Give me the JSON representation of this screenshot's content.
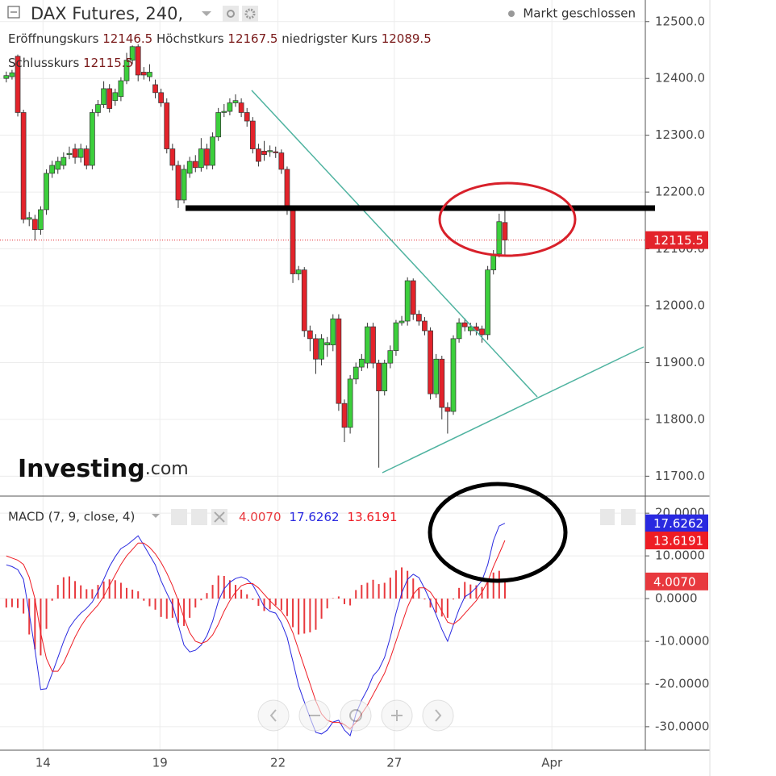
{
  "chart_data": [
    {
      "type": "candlestick",
      "title": "DAX Futures, 240,",
      "status": "Markt geschlossen",
      "ohlc_labels": [
        "Eröffnungskurs",
        "Höchstkurs",
        "niedrigster Kurs",
        "Schlusskurs"
      ],
      "logo": [
        "Investing",
        ".com"
      ],
      "up_color": "#3ccf3c",
      "down_color": "#e3232b",
      "open": [
        12400,
        12403,
        12439,
        12340,
        12152,
        12152,
        12134,
        12169,
        12233,
        12240,
        12247,
        12266,
        12276,
        12261,
        12276,
        12247,
        12340,
        12354,
        12382,
        12361,
        12368,
        12396,
        12432,
        12456,
        12411,
        12403,
        12389,
        12375,
        12357,
        12276,
        12247,
        12186,
        12233,
        12254,
        12243,
        12276,
        12247,
        12297,
        12340,
        12342,
        12357,
        12357,
        12340,
        12325,
        12276,
        12272,
        12271,
        12271,
        12269,
        12240,
        12169,
        12056,
        12063,
        11956,
        11942,
        11906,
        11931,
        11931,
        11977,
        11828,
        11786,
        11871,
        11892,
        11899,
        11963,
        11899,
        11850,
        11899,
        11921,
        11970,
        11973,
        12044,
        11985,
        11973,
        11956,
        11845,
        11906,
        11821,
        11814,
        11942,
        11970,
        11956,
        11963,
        11959,
        11949,
        12063,
        12091,
        12146.5
      ],
      "high": [
        12412,
        12415,
        12442,
        12345,
        12165,
        12160,
        12175,
        12240,
        12255,
        12262,
        12270,
        12280,
        12285,
        12285,
        12282,
        12346,
        12362,
        12395,
        12390,
        12382,
        12402,
        12445,
        12458,
        12460,
        12420,
        12425,
        12398,
        12382,
        12365,
        12285,
        12255,
        12248,
        12262,
        12265,
        12295,
        12285,
        12305,
        12348,
        12355,
        12365,
        12372,
        12365,
        12348,
        12332,
        12285,
        12290,
        12282,
        12280,
        12275,
        12245,
        12175,
        12070,
        12068,
        11965,
        11950,
        11950,
        11945,
        11985,
        11985,
        11835,
        11878,
        11900,
        11915,
        11970,
        11970,
        11905,
        11905,
        11930,
        11975,
        11982,
        12050,
        12048,
        11992,
        11980,
        11962,
        11915,
        11912,
        11830,
        11948,
        11978,
        11978,
        11970,
        11970,
        11965,
        12070,
        12098,
        12162,
        12167.5
      ],
      "low": [
        12393,
        12398,
        12333,
        12145,
        12140,
        12115,
        12125,
        12160,
        12225,
        12232,
        12240,
        12258,
        12250,
        12252,
        12240,
        12240,
        12333,
        12348,
        12340,
        12352,
        12360,
        12390,
        12425,
        12395,
        12398,
        12395,
        12365,
        12350,
        12268,
        12238,
        12172,
        12180,
        12225,
        12235,
        12236,
        12240,
        12240,
        12290,
        12332,
        12335,
        12350,
        12332,
        12315,
        12268,
        12245,
        12255,
        12262,
        12260,
        12232,
        12160,
        12040,
        12045,
        11945,
        11920,
        11880,
        11895,
        11910,
        11920,
        11815,
        11760,
        11775,
        11862,
        11885,
        11890,
        11890,
        11715,
        11842,
        11890,
        11912,
        11965,
        11965,
        11975,
        11965,
        11948,
        11835,
        11838,
        11800,
        11775,
        11808,
        11935,
        11955,
        11948,
        11948,
        11935,
        11940,
        12055,
        12085,
        12089.5
      ],
      "close": [
        12405,
        12410,
        12340,
        12152,
        12155,
        12134,
        12169,
        12233,
        12247,
        12254,
        12261,
        12268,
        12261,
        12276,
        12247,
        12340,
        12354,
        12382,
        12347,
        12375,
        12396,
        12432,
        12456,
        12406,
        12406,
        12411,
        12375,
        12357,
        12276,
        12247,
        12186,
        12240,
        12254,
        12243,
        12276,
        12247,
        12297,
        12340,
        12342,
        12357,
        12361,
        12340,
        12325,
        12276,
        12254,
        12266,
        12273,
        12269,
        12240,
        12169,
        12056,
        12063,
        11956,
        11942,
        11906,
        11942,
        11935,
        11977,
        11828,
        11786,
        11871,
        11892,
        11906,
        11963,
        11899,
        11850,
        11899,
        11921,
        11970,
        11973,
        12044,
        11985,
        11973,
        11956,
        11845,
        11906,
        11821,
        11814,
        11942,
        11970,
        11963,
        11963,
        11956,
        11949,
        12063,
        12091,
        12148,
        12115.5
      ],
      "xlim": [
        -1.1,
        111.5
      ],
      "xticks": [
        {
          "value": 6.4,
          "label": "14"
        },
        {
          "value": 26.8,
          "label": "19"
        },
        {
          "value": 47.4,
          "label": "22"
        },
        {
          "value": 67.7,
          "label": "27"
        },
        {
          "value": 95.2,
          "label": "Apr"
        }
      ],
      "ylim": [
        11665,
        12538
      ],
      "yticks": [
        {
          "value": 11700,
          "label": "11700.0"
        },
        {
          "value": 11800,
          "label": "11800.0"
        },
        {
          "value": 11900,
          "label": "11900.0"
        },
        {
          "value": 12000,
          "label": "12000.0"
        },
        {
          "value": 12100,
          "label": "12100.0"
        },
        {
          "value": 12200,
          "label": "12200.0"
        },
        {
          "value": 12300,
          "label": "12300.0"
        },
        {
          "value": 12400,
          "label": "12400.0"
        },
        {
          "value": 12500,
          "label": "12500.0"
        }
      ],
      "grid": true
    },
    {
      "type": "line",
      "title": "MACD (7, 9, close, 4)",
      "series": [
        {
          "type": "bar",
          "color": "#e8393e",
          "last_value_label": "4.0070",
          "values": [
            -2.1,
            -2.0,
            -2.2,
            -3.5,
            -8.4,
            -11.9,
            -13.3,
            -7.1,
            -0.5,
            3.2,
            5.0,
            5.2,
            4.1,
            3.1,
            2.2,
            2.2,
            3.2,
            4.0,
            4.5,
            4.3,
            3.7,
            2.5,
            2.1,
            1.7,
            -0.5,
            -1.8,
            -2.6,
            -4.3,
            -4.7,
            -4.5,
            -5.7,
            -6.4,
            -4.5,
            -2.1,
            -0.4,
            1.3,
            3.2,
            5.4,
            5.3,
            4.3,
            3.2,
            2.1,
            1.0,
            -0.3,
            -1.7,
            -2.9,
            -2.5,
            -1.6,
            -2.7,
            -4.1,
            -6.7,
            -8.4,
            -8.2,
            -7.9,
            -7.3,
            -4.7,
            -2.3,
            0.1,
            0.5,
            -1.3,
            -1.6,
            2.0,
            3.2,
            3.7,
            4.4,
            3.4,
            3.7,
            4.9,
            6.6,
            7.3,
            6.5,
            4.7,
            2.4,
            -0.2,
            -2.1,
            -3.3,
            -4.2,
            -4.5,
            -0.2,
            2.5,
            3.9,
            3.3,
            3.1,
            2.7,
            3.9,
            6.1,
            6.5,
            4.007
          ]
        },
        {
          "type": "line",
          "color": "#2929e0",
          "last_value_label": "17.6262",
          "values": [
            7.9,
            7.5,
            6.8,
            4.5,
            -3.4,
            -11.9,
            -21.3,
            -21.1,
            -17.5,
            -13.8,
            -10.0,
            -6.8,
            -4.9,
            -3.4,
            -2.3,
            -0.8,
            1.7,
            4.5,
            7.5,
            9.8,
            11.7,
            12.5,
            13.6,
            14.7,
            12.5,
            10.2,
            7.9,
            4.2,
            1.3,
            -1.5,
            -6.2,
            -10.9,
            -12.5,
            -12.1,
            -10.9,
            -8.7,
            -5.3,
            -0.6,
            2.3,
            3.8,
            4.7,
            5.1,
            4.5,
            3.2,
            0.8,
            -1.9,
            -3.0,
            -3.4,
            -5.7,
            -9.1,
            -14.7,
            -20.4,
            -24.2,
            -27.9,
            -31.3,
            -31.7,
            -30.8,
            -28.9,
            -28.5,
            -30.8,
            -32.1,
            -27.0,
            -23.8,
            -21.3,
            -18.1,
            -16.6,
            -13.8,
            -9.1,
            -3.4,
            1.3,
            4.5,
            5.7,
            4.9,
            2.3,
            -0.6,
            -3.8,
            -7.2,
            -10.0,
            -6.2,
            -2.5,
            0.4,
            1.3,
            2.6,
            4.2,
            7.9,
            13.6,
            17.0,
            17.6262
          ]
        },
        {
          "type": "line",
          "color": "#ee1c24",
          "last_value_label": "13.6191",
          "values": [
            10,
            9.5,
            9,
            8,
            5,
            0,
            -8,
            -14,
            -17,
            -17,
            -15,
            -12,
            -9,
            -6.5,
            -4.5,
            -3,
            -1.5,
            0.5,
            3,
            5.5,
            8,
            10,
            11.5,
            13,
            13,
            12,
            10.5,
            8.5,
            6,
            3,
            -0.5,
            -4.5,
            -8,
            -10,
            -10.5,
            -10,
            -8.5,
            -6,
            -3,
            -0.5,
            1.5,
            3,
            3.5,
            3.5,
            2.5,
            1,
            -0.5,
            -1.8,
            -3,
            -5,
            -8,
            -12,
            -16,
            -20,
            -24,
            -27,
            -28.5,
            -29,
            -29,
            -29.5,
            -30.5,
            -29,
            -27,
            -25,
            -22.5,
            -20,
            -17.5,
            -14,
            -10,
            -6,
            -2,
            1,
            2.5,
            2.5,
            1.5,
            -0.5,
            -3,
            -5.5,
            -6,
            -5,
            -3.5,
            -2,
            -0.5,
            1.5,
            4,
            7.5,
            10.5,
            13.6191
          ]
        }
      ],
      "ylim": [
        -35.5,
        24
      ],
      "yticks": [
        {
          "value": -30,
          "label": "-30.0000"
        },
        {
          "value": -20,
          "label": "-20.0000"
        },
        {
          "value": -10,
          "label": "-10.0000"
        },
        {
          "value": 0,
          "label": "0.0000"
        },
        {
          "value": 10,
          "label": "10.0000"
        },
        {
          "value": 20,
          "label": "20.0000"
        }
      ],
      "grid": true
    }
  ]
}
